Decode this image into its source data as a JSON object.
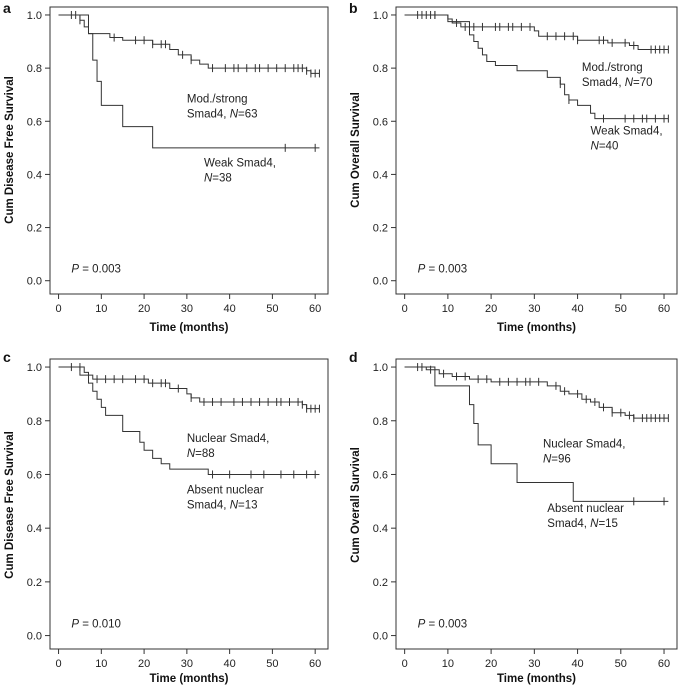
{
  "chart_data": [
    {
      "type": "line",
      "panel": "a",
      "ylabel": "Cum Disease Free Survival",
      "xlabel": "Time (months)",
      "xlim": [
        -2,
        63
      ],
      "ylim": [
        -0.05,
        1.03
      ],
      "xticks": [
        "0",
        "10",
        "20",
        "30",
        "40",
        "50",
        "60"
      ],
      "yticks": [
        "0.0",
        "0.2",
        "0.4",
        "0.6",
        "0.8",
        "1.0"
      ],
      "pvalue": {
        "prefix": "P",
        "text": " = 0.003",
        "x": 3,
        "y": 0.03
      },
      "series": [
        {
          "name": "Mod./strong Smad4",
          "label_lines": [
            "Mod./strong",
            "Smad4, ",
            "N",
            "=63"
          ],
          "label_pos": {
            "x": 30,
            "y": 0.67
          },
          "steps": [
            [
              0,
              1.0
            ],
            [
              5,
              0.98
            ],
            [
              6,
              0.955
            ],
            [
              7,
              0.93
            ],
            [
              12,
              0.915
            ],
            [
              15,
              0.905
            ],
            [
              22,
              0.89
            ],
            [
              26,
              0.87
            ],
            [
              28,
              0.85
            ],
            [
              31,
              0.83
            ],
            [
              33,
              0.815
            ],
            [
              35,
              0.8
            ],
            [
              58,
              0.79
            ],
            [
              59,
              0.78
            ],
            [
              61,
              0.78
            ]
          ],
          "censors": [
            3,
            4,
            5,
            13,
            18,
            20,
            22,
            24,
            25,
            29,
            31,
            36,
            39,
            41,
            42,
            44,
            46,
            47,
            49,
            51,
            53,
            55,
            56,
            57,
            58,
            59,
            60,
            61
          ]
        },
        {
          "name": "Weak Smad4",
          "label_lines": [
            "Weak Smad4,",
            "",
            "N",
            "=38"
          ],
          "label_pos": {
            "x": 34,
            "y": 0.43
          },
          "steps": [
            [
              0,
              1.0
            ],
            [
              7,
              0.93
            ],
            [
              8,
              0.83
            ],
            [
              9,
              0.75
            ],
            [
              10,
              0.66
            ],
            [
              15,
              0.58
            ],
            [
              22,
              0.5
            ],
            [
              61,
              0.5
            ]
          ],
          "censors": [
            53,
            60
          ]
        }
      ]
    },
    {
      "type": "line",
      "panel": "b",
      "ylabel": "Cum Overall Survival",
      "xlabel": "Time (months)",
      "xlim": [
        -2,
        63
      ],
      "ylim": [
        -0.05,
        1.03
      ],
      "xticks": [
        "0",
        "10",
        "20",
        "30",
        "40",
        "50",
        "60"
      ],
      "yticks": [
        "0.0",
        "0.2",
        "0.4",
        "0.6",
        "0.8",
        "1.0"
      ],
      "pvalue": {
        "prefix": "P",
        "text": " = 0.003",
        "x": 3,
        "y": 0.03
      },
      "series": [
        {
          "name": "Mod./strong Smad4",
          "label_lines": [
            "Mod./strong",
            "Smad4, ",
            "N",
            "=70"
          ],
          "label_pos": {
            "x": 41,
            "y": 0.79
          },
          "steps": [
            [
              0,
              1.0
            ],
            [
              10,
              0.985
            ],
            [
              11,
              0.97
            ],
            [
              13,
              0.955
            ],
            [
              30,
              0.94
            ],
            [
              31,
              0.92
            ],
            [
              40,
              0.905
            ],
            [
              47,
              0.895
            ],
            [
              52,
              0.885
            ],
            [
              54,
              0.87
            ],
            [
              61,
              0.87
            ]
          ],
          "censors": [
            3,
            4,
            5,
            6,
            7,
            12,
            14,
            16,
            18,
            21,
            22,
            24,
            25,
            27,
            29,
            33,
            35,
            37,
            39,
            40,
            45,
            46,
            48,
            51,
            53,
            57,
            58,
            59,
            60,
            61
          ]
        },
        {
          "name": "Weak Smad4",
          "label_lines": [
            "Weak Smad4,",
            "",
            "N",
            "=40"
          ],
          "label_pos": {
            "x": 43,
            "y": 0.55
          },
          "steps": [
            [
              0,
              1.0
            ],
            [
              10,
              0.975
            ],
            [
              15,
              0.925
            ],
            [
              16,
              0.9
            ],
            [
              17,
              0.875
            ],
            [
              18,
              0.85
            ],
            [
              19,
              0.825
            ],
            [
              21,
              0.81
            ],
            [
              26,
              0.79
            ],
            [
              33,
              0.765
            ],
            [
              36,
              0.74
            ],
            [
              37,
              0.7
            ],
            [
              38,
              0.68
            ],
            [
              40,
              0.66
            ],
            [
              43,
              0.63
            ],
            [
              44,
              0.61
            ],
            [
              61,
              0.61
            ]
          ],
          "censors": [
            7,
            36,
            38,
            46,
            51,
            53,
            55,
            56,
            58,
            60,
            61
          ]
        }
      ]
    },
    {
      "type": "line",
      "panel": "c",
      "ylabel": "Cum Disease Free Survival",
      "xlabel": "Time (months)",
      "xlim": [
        -2,
        63
      ],
      "ylim": [
        -0.05,
        1.03
      ],
      "xticks": [
        "0",
        "10",
        "20",
        "30",
        "40",
        "50",
        "60"
      ],
      "yticks": [
        "0.0",
        "0.2",
        "0.4",
        "0.6",
        "0.8",
        "1.0"
      ],
      "pvalue": {
        "prefix": "P",
        "text": " = 0.010",
        "x": 3,
        "y": 0.03
      },
      "series": [
        {
          "name": "Nuclear Smad4",
          "label_lines": [
            "Nuclear Smad4,",
            "",
            "N",
            "=88"
          ],
          "label_pos": {
            "x": 30,
            "y": 0.72
          },
          "steps": [
            [
              0,
              1.0
            ],
            [
              6,
              0.98
            ],
            [
              7,
              0.97
            ],
            [
              8,
              0.955
            ],
            [
              21,
              0.94
            ],
            [
              26,
              0.92
            ],
            [
              30,
              0.9
            ],
            [
              31,
              0.885
            ],
            [
              33,
              0.87
            ],
            [
              57,
              0.86
            ],
            [
              58,
              0.845
            ],
            [
              61,
              0.845
            ]
          ],
          "censors": [
            3,
            5,
            9,
            11,
            13,
            15,
            18,
            20,
            22,
            24,
            25,
            28,
            31,
            34,
            36,
            38,
            41,
            43,
            45,
            47,
            49,
            51,
            52,
            54,
            56,
            57,
            58,
            59,
            60,
            61
          ]
        },
        {
          "name": "Absent nuclear Smad4",
          "label_lines": [
            "Absent nuclear",
            "Smad4, ",
            "N",
            "=13"
          ],
          "label_pos": {
            "x": 30,
            "y": 0.53
          },
          "steps": [
            [
              0,
              1.0
            ],
            [
              5,
              0.97
            ],
            [
              7,
              0.94
            ],
            [
              8,
              0.91
            ],
            [
              9,
              0.88
            ],
            [
              10,
              0.85
            ],
            [
              11,
              0.82
            ],
            [
              15,
              0.76
            ],
            [
              19,
              0.72
            ],
            [
              20,
              0.69
            ],
            [
              22,
              0.66
            ],
            [
              24,
              0.64
            ],
            [
              26,
              0.62
            ],
            [
              35,
              0.6
            ],
            [
              61,
              0.6
            ]
          ],
          "censors": [
            36,
            40,
            45,
            48,
            52,
            55,
            58,
            60
          ]
        }
      ]
    },
    {
      "type": "line",
      "panel": "d",
      "ylabel": "Cum Overall Survival",
      "xlabel": "Time (months)",
      "xlim": [
        -2,
        63
      ],
      "ylim": [
        -0.05,
        1.03
      ],
      "xticks": [
        "0",
        "10",
        "20",
        "30",
        "40",
        "50",
        "60"
      ],
      "yticks": [
        "0.0",
        "0.2",
        "0.4",
        "0.6",
        "0.8",
        "1.0"
      ],
      "pvalue": {
        "prefix": "P",
        "text": " = 0.003",
        "x": 3,
        "y": 0.03
      },
      "series": [
        {
          "name": "Nuclear Smad4",
          "label_lines": [
            "Nuclear Smad4,",
            "",
            "N",
            "=96"
          ],
          "label_pos": {
            "x": 32,
            "y": 0.7
          },
          "steps": [
            [
              0,
              1.0
            ],
            [
              5,
              0.99
            ],
            [
              8,
              0.975
            ],
            [
              11,
              0.965
            ],
            [
              15,
              0.955
            ],
            [
              20,
              0.945
            ],
            [
              33,
              0.93
            ],
            [
              36,
              0.91
            ],
            [
              38,
              0.9
            ],
            [
              41,
              0.88
            ],
            [
              43,
              0.87
            ],
            [
              45,
              0.85
            ],
            [
              48,
              0.83
            ],
            [
              51,
              0.82
            ],
            [
              53,
              0.81
            ],
            [
              61,
              0.81
            ]
          ],
          "censors": [
            3,
            4,
            6,
            9,
            12,
            14,
            17,
            19,
            22,
            24,
            26,
            28,
            29,
            31,
            35,
            37,
            40,
            42,
            44,
            46,
            48,
            50,
            52,
            53,
            55,
            56,
            57,
            58,
            59,
            60,
            61
          ]
        },
        {
          "name": "Absent nuclear Smad4",
          "label_lines": [
            "Absent nuclear",
            "Smad4, ",
            "N",
            "=15"
          ],
          "label_pos": {
            "x": 33,
            "y": 0.46
          },
          "steps": [
            [
              0,
              1.0
            ],
            [
              7,
              0.93
            ],
            [
              15,
              0.86
            ],
            [
              16,
              0.79
            ],
            [
              17,
              0.71
            ],
            [
              20,
              0.64
            ],
            [
              26,
              0.57
            ],
            [
              39,
              0.5
            ],
            [
              61,
              0.5
            ]
          ],
          "censors": [
            53,
            60
          ]
        }
      ]
    }
  ]
}
